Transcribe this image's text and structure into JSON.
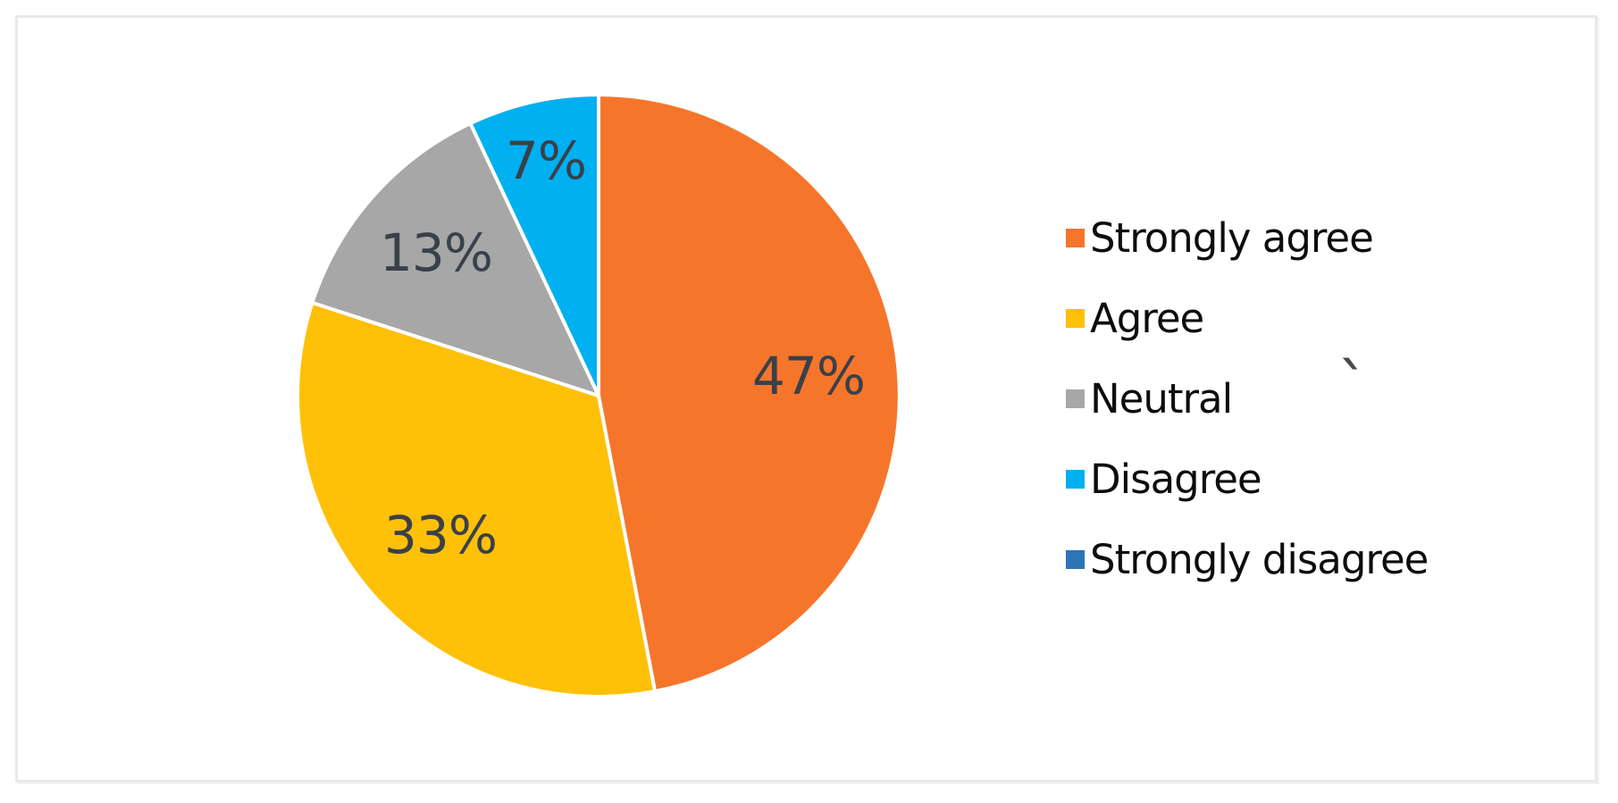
{
  "chart_data": {
    "type": "pie",
    "title": "",
    "legend_position": "right",
    "start_angle_deg": 0,
    "direction": "clockwise",
    "categories": [
      "Strongly agree",
      "Agree",
      "Neutral",
      "Disagree",
      "Strongly disagree"
    ],
    "values": [
      47,
      33,
      13,
      7,
      0
    ],
    "series": [
      {
        "name": "Strongly agree",
        "value": 47,
        "label": "47%",
        "color": "#f5762b"
      },
      {
        "name": "Agree",
        "value": 33,
        "label": "33%",
        "color": "#ffc008"
      },
      {
        "name": "Neutral",
        "value": 13,
        "label": "13%",
        "color": "#a7a7a7"
      },
      {
        "name": "Disagree",
        "value": 7,
        "label": "7%",
        "color": "#00b0f0"
      },
      {
        "name": "Strongly disagree",
        "value": 0,
        "label": "",
        "color": "#2e75b6"
      }
    ],
    "label_color": "#3a4049",
    "slice_border_color": "#ffffff",
    "background_color": "#ffffff",
    "frame_border_color": "#e9e9e9"
  },
  "artifacts": {
    "stray_mark": "`"
  }
}
